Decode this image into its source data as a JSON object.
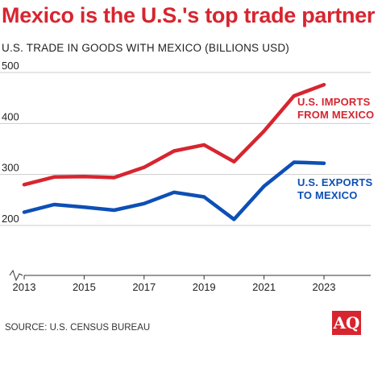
{
  "title": "Mexico is the U.S.'s top trade partner",
  "subtitle": "U.S. TRADE IN GOODS WITH MEXICO (BILLIONS USD)",
  "source": "SOURCE: U.S. CENSUS BUREAU",
  "logo_text": "AQ",
  "colors": {
    "imports": "#d7252f",
    "exports": "#0d4fb5",
    "grid": "#cccccc",
    "axis": "#333333"
  },
  "chart_data": {
    "type": "line",
    "title": "Mexico is the U.S.'s top trade partner",
    "subtitle": "U.S. TRADE IN GOODS WITH MEXICO (BILLIONS USD)",
    "xlabel": "",
    "ylabel": "",
    "x": [
      2013,
      2014,
      2015,
      2016,
      2017,
      2018,
      2019,
      2020,
      2021,
      2022,
      2023
    ],
    "xticks": [
      2013,
      2015,
      2017,
      2019,
      2021,
      2023
    ],
    "yticks": [
      200,
      300,
      400,
      500
    ],
    "ytick_labels": [
      "200",
      "300",
      "400",
      "500"
    ],
    "xlim": [
      2013,
      2023
    ],
    "ylim": [
      0,
      500
    ],
    "grid": "horizontal",
    "broken_axis": true,
    "series": [
      {
        "name": "U.S. IMPORTS FROM MEXICO",
        "label_lines": [
          "U.S. IMPORTS",
          "FROM MEXICO"
        ],
        "values": [
          280,
          295,
          296,
          294,
          314,
          346,
          358,
          325,
          385,
          454,
          476
        ]
      },
      {
        "name": "U.S. EXPORTS TO MEXICO",
        "label_lines": [
          "U.S. EXPORTS",
          "TO MEXICO"
        ],
        "values": [
          226,
          241,
          236,
          230,
          243,
          265,
          256,
          212,
          277,
          324,
          322
        ]
      }
    ]
  }
}
